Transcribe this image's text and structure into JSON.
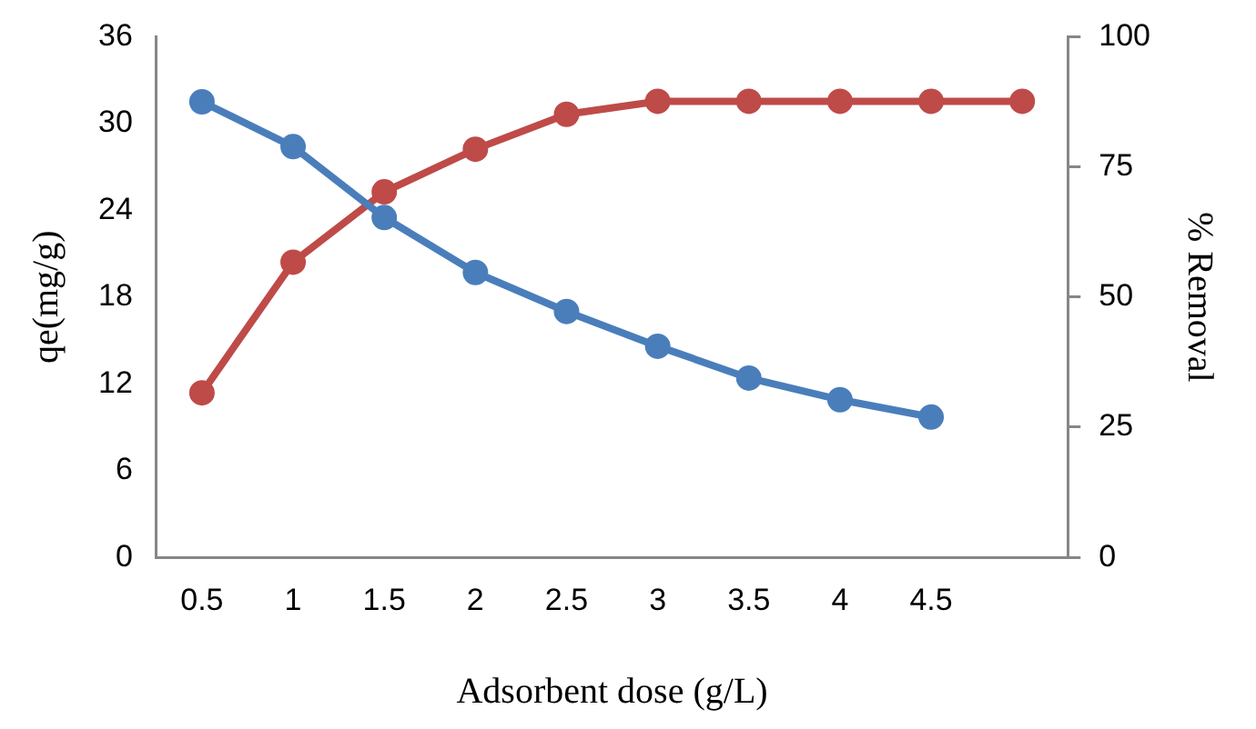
{
  "chart_data": {
    "type": "line",
    "xlabel": "Adsorbent dose (g/L)",
    "ylabel": "qe(mg/g)",
    "y2label": "% Removal",
    "categories": [
      "0.5",
      "1",
      "1.5",
      "2",
      "2.5",
      "3",
      "3.5",
      "4",
      "4.5",
      null
    ],
    "series": [
      {
        "color": "#4a7ebb",
        "values": [
          31.5,
          28.4,
          23.5,
          19.7,
          17.0,
          14.6,
          12.4,
          10.9,
          9.7,
          null
        ]
      },
      {
        "color": "#be4b48",
        "axis": "y2",
        "values": [
          31.6,
          56.7,
          70.2,
          78.4,
          85.1,
          87.6,
          87.6,
          87.6,
          87.6,
          87.6
        ]
      }
    ],
    "ylim": [
      0,
      36
    ],
    "yticks": [
      0,
      6,
      12,
      18,
      24,
      30,
      36
    ],
    "y2lim": [
      0,
      100
    ],
    "y2ticks": [
      0,
      25,
      50,
      75,
      100
    ],
    "grid": false,
    "legend": false,
    "marker": "circle",
    "line_style": "solid"
  }
}
